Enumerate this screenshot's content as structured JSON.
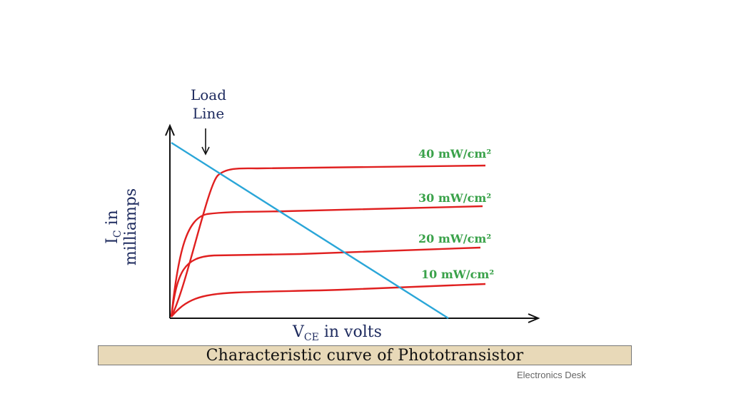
{
  "diagram": {
    "load_line_label": [
      "Load",
      "Line"
    ],
    "y_axis_label": {
      "main": "I",
      "sub": "C",
      "rest": " in",
      "line2": "milliamps"
    },
    "x_axis_label": {
      "main": "V",
      "sub": "CE",
      "rest": " in volts"
    },
    "curves": [
      {
        "label": "40 mW/cm²",
        "level": 4
      },
      {
        "label": "30 mW/cm²",
        "level": 3
      },
      {
        "label": "20 mW/cm²",
        "level": 2
      },
      {
        "label": "10 mW/cm²",
        "level": 1
      }
    ],
    "colors": {
      "curve": "#e02020",
      "load_line": "#2aa6d8",
      "label_green": "#3aa24a",
      "title_navy": "#1d2a5e",
      "axis": "#111111"
    }
  },
  "caption": "Characteristic curve of Phototransistor",
  "watermark": "Electronics Desk"
}
